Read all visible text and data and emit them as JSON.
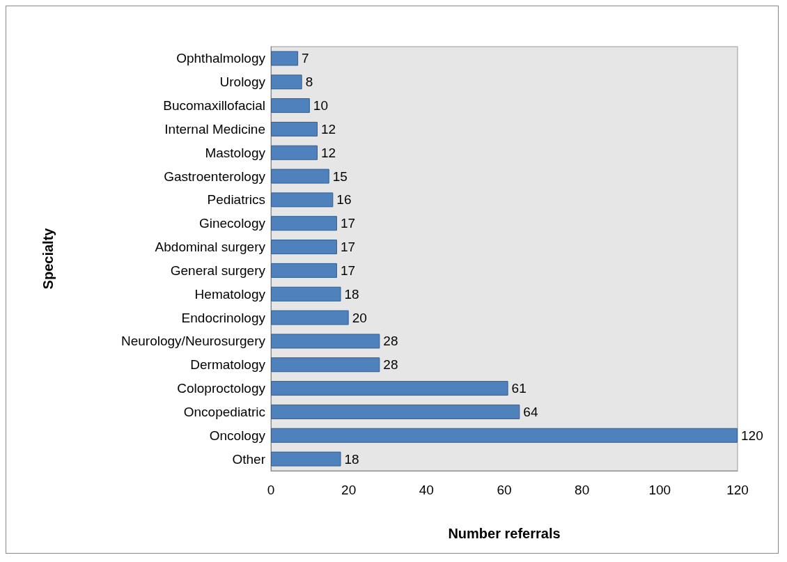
{
  "chart_data": {
    "type": "bar",
    "orientation": "horizontal",
    "xlabel": "Number referrals",
    "ylabel": "Specialty",
    "categories": [
      "Ophthalmology",
      "Urology",
      "Bucomaxillofacial",
      "Internal Medicine",
      "Mastology",
      "Gastroenterology",
      "Pediatrics",
      "Ginecology",
      "Abdominal surgery",
      "General surgery",
      "Hematology",
      "Endocrinology",
      "Neurology/Neurosurgery",
      "Dermatology",
      "Coloproctology",
      "Oncopediatric",
      "Oncology",
      "Other"
    ],
    "values": [
      7,
      8,
      10,
      12,
      12,
      15,
      16,
      17,
      17,
      17,
      18,
      20,
      28,
      28,
      61,
      64,
      120,
      18
    ],
    "color": "#4f81bd",
    "xlim": [
      0,
      120
    ],
    "xticks": [
      0,
      20,
      40,
      60,
      80,
      100,
      120
    ],
    "data_labels": true,
    "grid": false
  }
}
